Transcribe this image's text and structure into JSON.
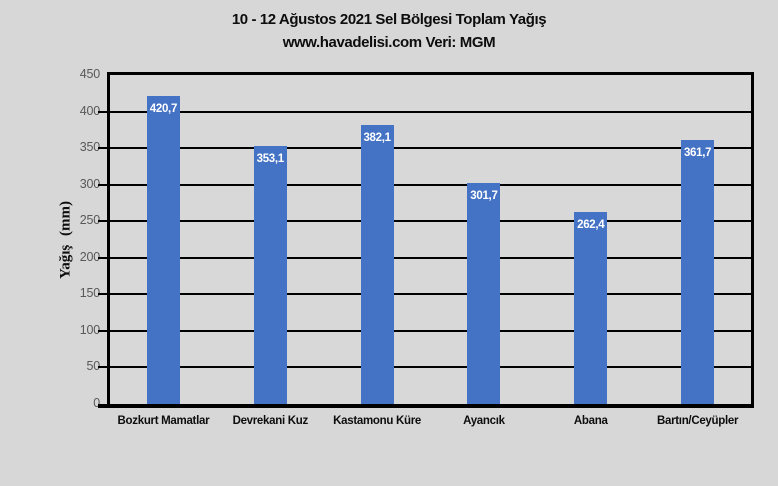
{
  "chart_data": {
    "type": "bar",
    "title": "10 - 12 Ağustos 2021 Sel Bölgesi Toplam Yağış",
    "title_lines": [
      "10 - 12 Ağustos 2021 Sel Bölgesi Toplam Yağış",
      "www.havadelisi.com Veri: MGM"
    ],
    "categories": [
      "Bozkurt Mamatlar",
      "Devrekani Kuz",
      "Kastamonu Küre",
      "Ayancık",
      "Abana",
      "Bartın/Ceyüpler"
    ],
    "values": [
      420.7,
      353.1,
      382.1,
      301.7,
      262.4,
      361.7
    ],
    "value_labels": [
      "420,7",
      "353,1",
      "382,1",
      "301,7",
      "262,4",
      "361,7"
    ],
    "xlabel": "",
    "ylabel": "Yağış (mm)",
    "ylim": [
      0,
      450
    ],
    "yticks": [
      0,
      50,
      100,
      150,
      200,
      250,
      300,
      350,
      400,
      450
    ],
    "grid": true,
    "legend": false,
    "colors": {
      "bar": "#4472C4",
      "bar_label_text": "#FFFFFF",
      "gridline": "#000000",
      "axis_border": "#000000",
      "tick_text": "#595959",
      "title_text": "#0D0D0D",
      "plot_background": "#D8D8D8",
      "page_background": "#D7D7D7"
    }
  }
}
